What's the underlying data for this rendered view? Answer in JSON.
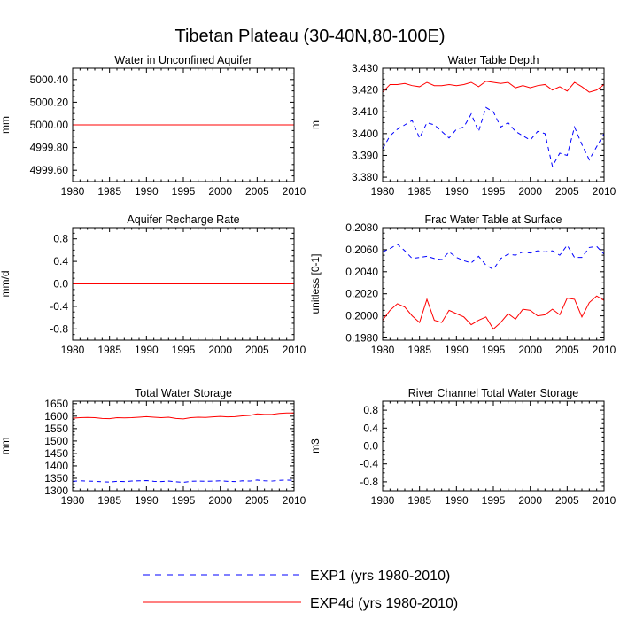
{
  "figure_title": "Tibetan Plateau (30-40N,80-100E)",
  "colors": {
    "exp1": "#0000ff",
    "exp4d": "#ff0000",
    "axis": "#000000"
  },
  "legend": {
    "exp1_label": "EXP1 (yrs 1980-2010)",
    "exp4d_label": "EXP4d (yrs 1980-2010)"
  },
  "chart_data": [
    {
      "type": "line",
      "title": "Water in Unconfined Aquifer",
      "ylabel": "mm",
      "xlim": [
        1980,
        2010
      ],
      "ylim": [
        4999.5,
        5000.5
      ],
      "xticks": [
        1980,
        1985,
        1990,
        1995,
        2000,
        2005,
        2010
      ],
      "yticks": [
        4999.6,
        4999.8,
        5000.0,
        5000.2,
        5000.4
      ],
      "ytick_labels": [
        "4999.60",
        "4999.80",
        "5000.00",
        "5000.20",
        "5000.40"
      ],
      "x": [
        1980,
        2010
      ],
      "series": [
        {
          "name": "EXP1",
          "values": [
            5000.0,
            5000.0
          ]
        },
        {
          "name": "EXP4d",
          "values": [
            5000.0,
            5000.0
          ]
        }
      ]
    },
    {
      "type": "line",
      "title": "Water Table Depth",
      "ylabel": "m",
      "xlim": [
        1980,
        2010
      ],
      "ylim": [
        3.378,
        3.43
      ],
      "xticks": [
        1980,
        1985,
        1990,
        1995,
        2000,
        2005,
        2010
      ],
      "yticks": [
        3.38,
        3.39,
        3.4,
        3.41,
        3.42,
        3.43
      ],
      "ytick_labels": [
        "3.380",
        "3.390",
        "3.400",
        "3.410",
        "3.420",
        "3.430"
      ],
      "x": [
        1980,
        1981,
        1982,
        1983,
        1984,
        1985,
        1986,
        1987,
        1988,
        1989,
        1990,
        1991,
        1992,
        1993,
        1994,
        1995,
        1996,
        1997,
        1998,
        1999,
        2000,
        2001,
        2002,
        2003,
        2004,
        2005,
        2006,
        2007,
        2008,
        2009,
        2010
      ],
      "series": [
        {
          "name": "EXP1",
          "values": [
            3.393,
            3.399,
            3.402,
            3.404,
            3.406,
            3.398,
            3.405,
            3.404,
            3.401,
            3.398,
            3.402,
            3.403,
            3.409,
            3.401,
            3.412,
            3.41,
            3.403,
            3.405,
            3.401,
            3.399,
            3.397,
            3.401,
            3.4,
            3.385,
            3.391,
            3.39,
            3.403,
            3.395,
            3.388,
            3.394,
            3.4
          ]
        },
        {
          "name": "EXP4d",
          "values": [
            3.419,
            3.4225,
            3.4225,
            3.423,
            3.422,
            3.4215,
            3.4235,
            3.422,
            3.422,
            3.4225,
            3.422,
            3.4225,
            3.4235,
            3.4215,
            3.424,
            3.4235,
            3.423,
            3.4235,
            3.421,
            3.422,
            3.421,
            3.422,
            3.4225,
            3.42,
            3.4215,
            3.4195,
            3.4235,
            3.4215,
            3.419,
            3.42,
            3.4225
          ]
        }
      ]
    },
    {
      "type": "line",
      "title": "Aquifer Recharge Rate",
      "ylabel": "mm/d",
      "xlim": [
        1980,
        2010
      ],
      "ylim": [
        -1.0,
        1.0
      ],
      "xticks": [
        1980,
        1985,
        1990,
        1995,
        2000,
        2005,
        2010
      ],
      "yticks": [
        -0.8,
        -0.4,
        0.0,
        0.4,
        0.8
      ],
      "ytick_labels": [
        "-0.8",
        "-0.4",
        "0.0",
        "0.4",
        "0.8"
      ],
      "x": [
        1980,
        2010
      ],
      "series": [
        {
          "name": "EXP1",
          "values": [
            0.0,
            0.0
          ]
        },
        {
          "name": "EXP4d",
          "values": [
            0.0,
            0.0
          ]
        }
      ]
    },
    {
      "type": "line",
      "title": "Frac Water Table at Surface",
      "ylabel": "unitless [0-1]",
      "xlim": [
        1980,
        2010
      ],
      "ylim": [
        0.1978,
        0.208
      ],
      "xticks": [
        1980,
        1985,
        1990,
        1995,
        2000,
        2005,
        2010
      ],
      "yticks": [
        0.198,
        0.2,
        0.202,
        0.204,
        0.206,
        0.208
      ],
      "ytick_labels": [
        "0.1980",
        "0.2000",
        "0.2020",
        "0.2040",
        "0.2060",
        "0.2080"
      ],
      "x": [
        1980,
        1981,
        1982,
        1983,
        1984,
        1985,
        1986,
        1987,
        1988,
        1989,
        1990,
        1991,
        1992,
        1993,
        1994,
        1995,
        1996,
        1997,
        1998,
        1999,
        2000,
        2001,
        2002,
        2003,
        2004,
        2005,
        2006,
        2007,
        2008,
        2009,
        2010
      ],
      "series": [
        {
          "name": "EXP1",
          "values": [
            0.2058,
            0.2061,
            0.2065,
            0.2059,
            0.2052,
            0.2053,
            0.2054,
            0.2052,
            0.2051,
            0.2058,
            0.2053,
            0.205,
            0.2048,
            0.2054,
            0.2046,
            0.2042,
            0.2052,
            0.2056,
            0.2055,
            0.2058,
            0.2057,
            0.2059,
            0.2058,
            0.2059,
            0.2055,
            0.2064,
            0.2053,
            0.2053,
            0.2062,
            0.2063,
            0.2056
          ]
        },
        {
          "name": "EXP4d",
          "values": [
            0.1996,
            0.2005,
            0.2011,
            0.2008,
            0.2,
            0.1994,
            0.2015,
            0.1996,
            0.1994,
            0.2005,
            0.2002,
            0.1999,
            0.1992,
            0.1996,
            0.1999,
            0.1988,
            0.1994,
            0.2002,
            0.1997,
            0.2006,
            0.2005,
            0.2,
            0.2001,
            0.2006,
            0.2001,
            0.2016,
            0.2015,
            0.1999,
            0.2012,
            0.2018,
            0.2014
          ]
        }
      ]
    },
    {
      "type": "line",
      "title": "Total Water Storage",
      "ylabel": "mm",
      "xlim": [
        1980,
        2010
      ],
      "ylim": [
        1300,
        1660
      ],
      "xticks": [
        1980,
        1985,
        1990,
        1995,
        2000,
        2005,
        2010
      ],
      "yticks": [
        1300,
        1350,
        1400,
        1450,
        1500,
        1550,
        1600,
        1650
      ],
      "ytick_labels": [
        "1300",
        "1350",
        "1400",
        "1450",
        "1500",
        "1550",
        "1600",
        "1650"
      ],
      "x": [
        1980,
        1981,
        1982,
        1983,
        1984,
        1985,
        1986,
        1987,
        1988,
        1989,
        1990,
        1991,
        1992,
        1993,
        1994,
        1995,
        1996,
        1997,
        1998,
        1999,
        2000,
        2001,
        2002,
        2003,
        2004,
        2005,
        2006,
        2007,
        2008,
        2009,
        2010
      ],
      "series": [
        {
          "name": "EXP1",
          "values": [
            1338,
            1340,
            1339,
            1338,
            1336,
            1335,
            1338,
            1337,
            1339,
            1340,
            1341,
            1338,
            1337,
            1339,
            1336,
            1334,
            1338,
            1339,
            1338,
            1339,
            1340,
            1338,
            1337,
            1340,
            1339,
            1343,
            1340,
            1339,
            1342,
            1343,
            1342
          ]
        },
        {
          "name": "EXP4d",
          "values": [
            1592,
            1594,
            1595,
            1594,
            1591,
            1590,
            1594,
            1593,
            1594,
            1596,
            1598,
            1596,
            1594,
            1596,
            1591,
            1589,
            1594,
            1596,
            1595,
            1597,
            1599,
            1597,
            1598,
            1601,
            1603,
            1609,
            1607,
            1607,
            1611,
            1613,
            1613
          ]
        }
      ]
    },
    {
      "type": "line",
      "title": "River Channel Total Water Storage",
      "ylabel": "m3",
      "xlim": [
        1980,
        2010
      ],
      "ylim": [
        -1.0,
        1.0
      ],
      "xticks": [
        1980,
        1985,
        1990,
        1995,
        2000,
        2005,
        2010
      ],
      "yticks": [
        -0.8,
        -0.4,
        0.0,
        0.4,
        0.8
      ],
      "ytick_labels": [
        "-0.8",
        "-0.4",
        "0.0",
        "0.4",
        "0.8"
      ],
      "x": [
        1980,
        2010
      ],
      "series": [
        {
          "name": "EXP1",
          "values": [
            0.0,
            0.0
          ]
        },
        {
          "name": "EXP4d",
          "values": [
            0.0,
            0.0
          ]
        }
      ]
    }
  ]
}
